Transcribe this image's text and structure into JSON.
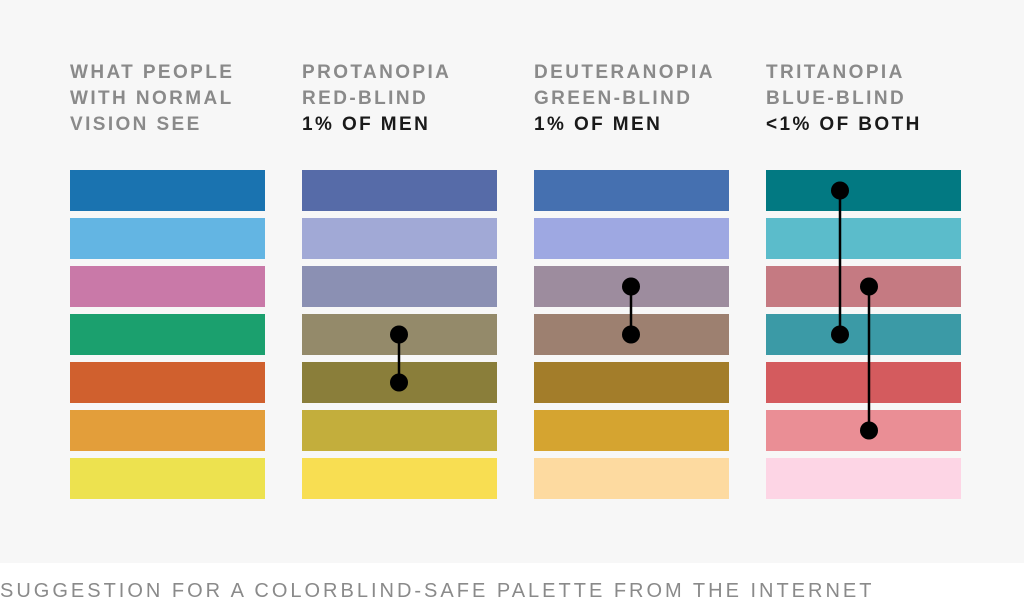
{
  "columns": [
    {
      "heading": [
        "WHAT PEOPLE",
        "WITH NORMAL",
        "VISION SEE"
      ],
      "swatches": [
        "#1a73b0",
        "#63b5e3",
        "#c979a8",
        "#1ba06e",
        "#d0602e",
        "#e39e3a",
        "#ede24f"
      ],
      "pairs": []
    },
    {
      "heading": [
        "PROTANOPIA",
        "RED-BLIND"
      ],
      "stat": "1% OF MEN",
      "swatches": [
        "#566ba8",
        "#a1a9d6",
        "#8b90b3",
        "#948a6a",
        "#8a7e3a",
        "#c3ae3c",
        "#f8de52"
      ],
      "pairs": [
        [
          3,
          4
        ]
      ]
    },
    {
      "heading": [
        "DEUTERANOPIA",
        "GREEN-BLIND"
      ],
      "stat": "1% OF MEN",
      "swatches": [
        "#4570b0",
        "#9ea8e2",
        "#9d8c9e",
        "#9d8070",
        "#a37d2a",
        "#d5a430",
        "#fddaa0"
      ],
      "pairs": [
        [
          2,
          3
        ]
      ]
    },
    {
      "heading": [
        "TRITANOPIA",
        "BLUE-BLIND"
      ],
      "stat": "<1% OF BOTH",
      "swatches": [
        "#027982",
        "#5bbccb",
        "#c57a82",
        "#3b9aa6",
        "#d45b5e",
        "#ea8e95",
        "#fdd5e5"
      ],
      "pairs": [
        [
          0,
          3
        ],
        [
          2,
          5
        ]
      ]
    }
  ],
  "caption": "SUGGESTION FOR A COLORBLIND-SAFE PALETTE FROM THE INTERNET"
}
